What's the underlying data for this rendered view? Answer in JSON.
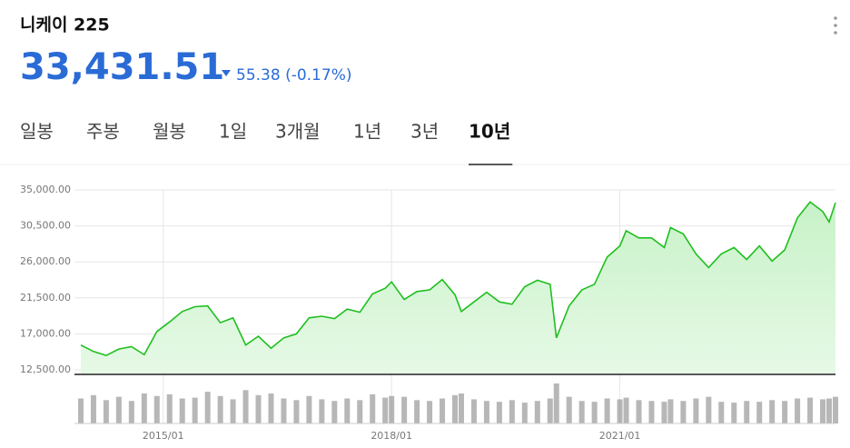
{
  "header": {
    "title": "니케이 225",
    "price": "33,431.51",
    "change": "55.38 (-0.17%)",
    "direction": "down"
  },
  "tabs": [
    {
      "label": "일봉",
      "selected": false
    },
    {
      "label": "주봉",
      "selected": false
    },
    {
      "label": "월봉",
      "selected": false
    },
    {
      "label": "1일",
      "selected": false
    },
    {
      "label": "3개월",
      "selected": false
    },
    {
      "label": "1년",
      "selected": false
    },
    {
      "label": "3년",
      "selected": false
    },
    {
      "label": "10년",
      "selected": true
    }
  ],
  "chart_data": [
    {
      "type": "line",
      "color": "#1fbf1f",
      "grid": true,
      "x": [
        "2013/12",
        "2014/02",
        "2014/04",
        "2014/06",
        "2014/08",
        "2014/10",
        "2014/12",
        "2015/02",
        "2015/04",
        "2015/06",
        "2015/08",
        "2015/10",
        "2015/12",
        "2016/02",
        "2016/04",
        "2016/06",
        "2016/08",
        "2016/10",
        "2016/12",
        "2017/02",
        "2017/04",
        "2017/06",
        "2017/08",
        "2017/10",
        "2017/12",
        "2018/01",
        "2018/03",
        "2018/05",
        "2018/07",
        "2018/09",
        "2018/11",
        "2018/12",
        "2019/02",
        "2019/04",
        "2019/06",
        "2019/08",
        "2019/10",
        "2019/12",
        "2020/02",
        "2020/03",
        "2020/05",
        "2020/07",
        "2020/09",
        "2020/11",
        "2021/01",
        "2021/02",
        "2021/04",
        "2021/06",
        "2021/08",
        "2021/09",
        "2021/11",
        "2022/01",
        "2022/03",
        "2022/05",
        "2022/07",
        "2022/09",
        "2022/11",
        "2023/01",
        "2023/03",
        "2023/05",
        "2023/07",
        "2023/09",
        "2023/10",
        "2023/11"
      ],
      "values": [
        15600,
        14800,
        14300,
        15100,
        15400,
        14400,
        17300,
        18500,
        19800,
        20400,
        20500,
        18400,
        19000,
        15600,
        16700,
        15200,
        16500,
        17000,
        19000,
        19200,
        18900,
        20100,
        19700,
        22000,
        22700,
        23500,
        21300,
        22300,
        22500,
        23800,
        21900,
        19800,
        21000,
        22200,
        21000,
        20700,
        22900,
        23700,
        23200,
        16500,
        20500,
        22500,
        23200,
        26600,
        28000,
        29900,
        29000,
        29000,
        27800,
        30300,
        29500,
        27000,
        25300,
        27000,
        27800,
        26300,
        28000,
        26100,
        27500,
        31500,
        33500,
        32300,
        31000,
        33400
      ],
      "xlim": [
        "2013/11",
        "2023/11"
      ],
      "xticks": [
        "2015/01",
        "2018/01",
        "2021/01"
      ],
      "ylim": [
        12500,
        35000
      ],
      "yticks": [
        {
          "value": 12500,
          "label": "12,500.00"
        },
        {
          "value": 17000,
          "label": "17,000.00"
        },
        {
          "value": 21500,
          "label": "21,500.00"
        },
        {
          "value": 26000,
          "label": "26,000.00"
        },
        {
          "value": 30500,
          "label": "30,500.00"
        },
        {
          "value": 35000,
          "label": "35,000.00"
        }
      ]
    },
    {
      "type": "bar",
      "color": "#999999",
      "values": [
        30,
        34,
        28,
        32,
        27,
        36,
        33,
        35,
        30,
        31,
        38,
        33,
        29,
        40,
        34,
        36,
        30,
        28,
        33,
        29,
        27,
        30,
        28,
        35,
        31,
        33,
        32,
        28,
        27,
        30,
        34,
        36,
        29,
        27,
        26,
        28,
        25,
        27,
        30,
        48,
        32,
        27,
        26,
        30,
        29,
        31,
        28,
        27,
        26,
        29,
        27,
        30,
        32,
        26,
        25,
        27,
        26,
        28,
        27,
        30,
        31,
        29,
        30,
        32
      ]
    }
  ]
}
